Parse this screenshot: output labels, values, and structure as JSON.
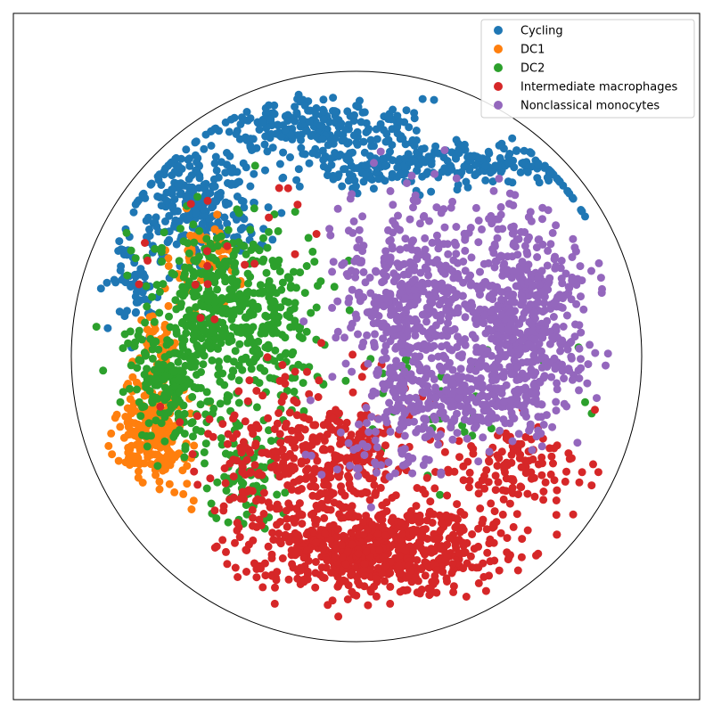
{
  "chart_data": {
    "type": "scatter",
    "title": "",
    "xlabel": "",
    "ylabel": "",
    "grid": false,
    "legend_position": "top-right",
    "axes_ticks_visible": false,
    "boundary": "circle",
    "series": [
      {
        "name": "Cycling",
        "color": "#1f77b4",
        "regions": [
          {
            "cx": -0.55,
            "cy": 0.52,
            "rx": 0.22,
            "ry": 0.22,
            "n": 260
          },
          {
            "cx": -0.15,
            "cy": 0.8,
            "rx": 0.35,
            "ry": 0.1,
            "n": 240
          },
          {
            "cx": 0.4,
            "cy": 0.68,
            "rx": 0.45,
            "ry": 0.07,
            "n": 180
          },
          {
            "cx": -0.78,
            "cy": 0.25,
            "rx": 0.08,
            "ry": 0.15,
            "n": 60
          },
          {
            "cx": 0.05,
            "cy": 0.65,
            "rx": 0.25,
            "ry": 0.08,
            "n": 90
          }
        ]
      },
      {
        "name": "DC1",
        "color": "#ff7f0e",
        "regions": [
          {
            "cx": -0.7,
            "cy": -0.25,
            "rx": 0.12,
            "ry": 0.2,
            "n": 220
          },
          {
            "cx": -0.55,
            "cy": 0.35,
            "rx": 0.12,
            "ry": 0.15,
            "n": 60
          },
          {
            "cx": -0.68,
            "cy": 0.05,
            "rx": 0.08,
            "ry": 0.12,
            "n": 50
          }
        ]
      },
      {
        "name": "DC2",
        "color": "#2ca02c",
        "regions": [
          {
            "cx": -0.45,
            "cy": 0.15,
            "rx": 0.3,
            "ry": 0.35,
            "n": 520
          },
          {
            "cx": -0.65,
            "cy": -0.1,
            "rx": 0.12,
            "ry": 0.2,
            "n": 150
          },
          {
            "cx": -0.4,
            "cy": -0.4,
            "rx": 0.12,
            "ry": 0.18,
            "n": 80
          },
          {
            "cx": 0.3,
            "cy": -0.15,
            "rx": 0.5,
            "ry": 0.25,
            "n": 40
          }
        ]
      },
      {
        "name": "Intermediate macrophages",
        "color": "#d62728",
        "regions": [
          {
            "cx": 0.08,
            "cy": -0.68,
            "rx": 0.45,
            "ry": 0.15,
            "n": 700
          },
          {
            "cx": -0.15,
            "cy": -0.35,
            "rx": 0.35,
            "ry": 0.25,
            "n": 400
          },
          {
            "cx": 0.55,
            "cy": -0.4,
            "rx": 0.25,
            "ry": 0.15,
            "n": 120
          },
          {
            "cx": -0.45,
            "cy": 0.35,
            "rx": 0.35,
            "ry": 0.3,
            "n": 20
          }
        ]
      },
      {
        "name": "Nonclassical monocytes",
        "color": "#9467bd",
        "regions": [
          {
            "cx": 0.2,
            "cy": 0.2,
            "rx": 0.25,
            "ry": 0.35,
            "n": 480
          },
          {
            "cx": 0.6,
            "cy": 0.15,
            "rx": 0.22,
            "ry": 0.35,
            "n": 480
          },
          {
            "cx": 0.35,
            "cy": -0.15,
            "rx": 0.35,
            "ry": 0.15,
            "n": 280
          },
          {
            "cx": 0.1,
            "cy": -0.35,
            "rx": 0.25,
            "ry": 0.1,
            "n": 40
          }
        ]
      }
    ]
  }
}
